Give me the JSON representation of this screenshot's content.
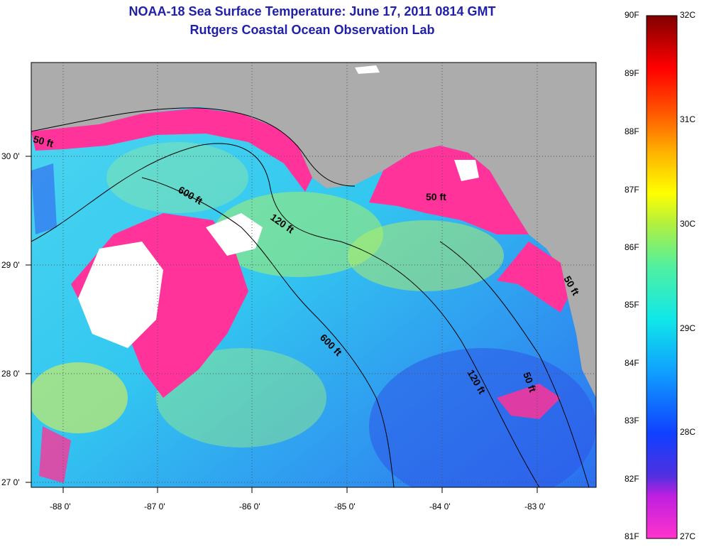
{
  "title": {
    "line1": "NOAA-18 Sea Surface Temperature:  June 17, 2011 0814 GMT",
    "line2": "Rutgers Coastal Ocean Observation Lab"
  },
  "map": {
    "lat_ticks": [
      "30 0'",
      "29 0'",
      "28 0'",
      "27 0'"
    ],
    "lon_ticks": [
      "-88 0'",
      "-87 0'",
      "-86 0'",
      "-85 0'",
      "-84 0'",
      "-83 0'"
    ],
    "depth_labels": [
      "50 ft",
      "600 ft",
      "120 ft",
      "50 ft",
      "600 ft",
      "120 ft",
      "50 ft",
      "50 ft"
    ]
  },
  "colorbar": {
    "f_labels": [
      "90F",
      "89F",
      "88F",
      "87F",
      "86F",
      "85F",
      "84F",
      "83F",
      "82F",
      "81F"
    ],
    "c_labels": [
      "32C",
      "31C",
      "30C",
      "29C",
      "28C",
      "27C"
    ]
  }
}
